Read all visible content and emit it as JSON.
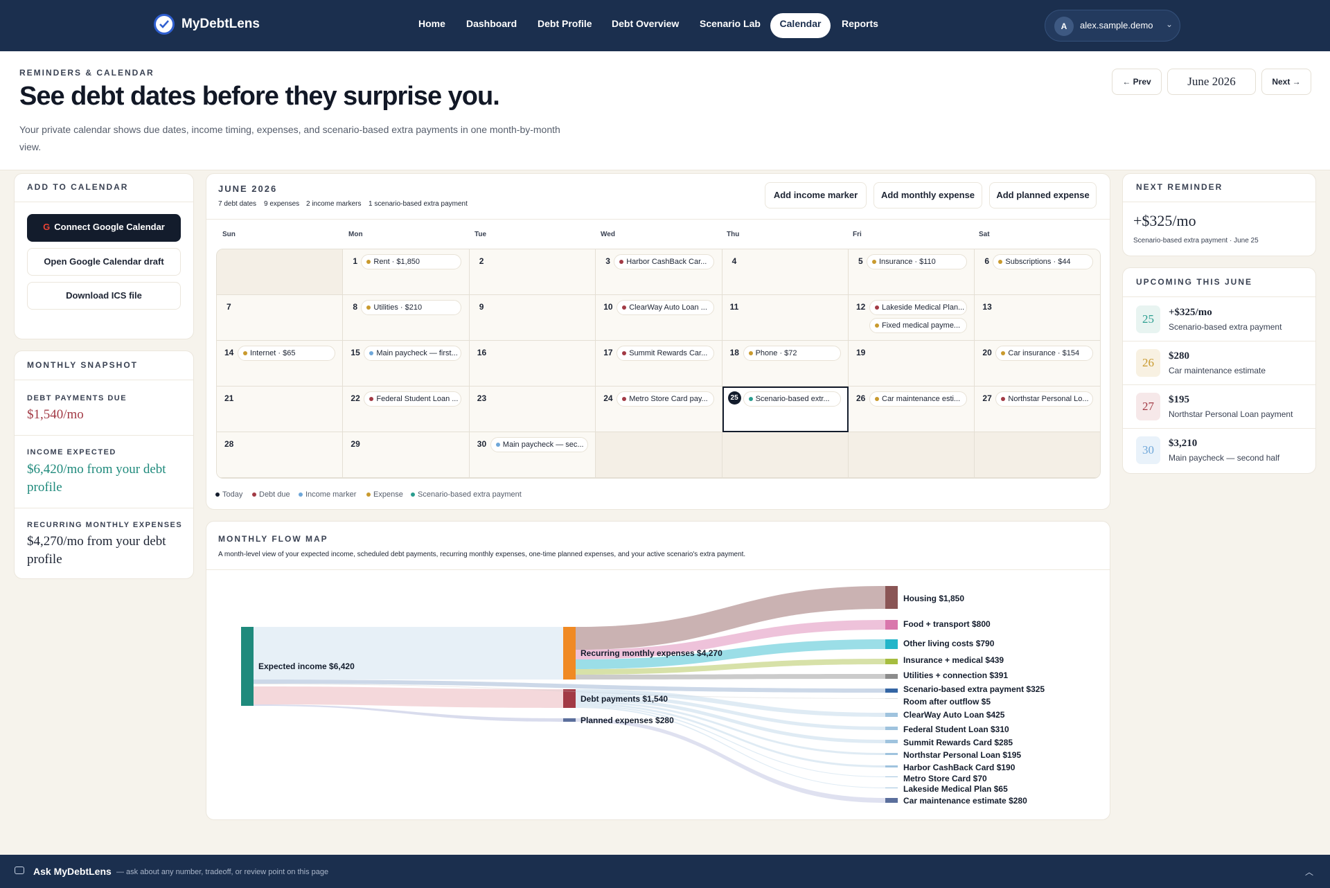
{
  "nav": {
    "brand": "MyDebtLens",
    "links": [
      "Home",
      "Dashboard",
      "Debt Profile",
      "Debt Overview",
      "Scenario Lab",
      "Calendar",
      "Reports"
    ],
    "active": "Calendar",
    "user_initial": "A",
    "user_name": "alex.sample.demo"
  },
  "header": {
    "eyebrow": "REMINDERS & CALENDAR",
    "title": "See debt dates before they surprise you.",
    "subtitle": "Your private calendar shows due dates, income timing, expenses, and scenario-based extra payments in one month-by-month view.",
    "prev_label": "← Prev",
    "month": "June 2026",
    "next_label": "Next →"
  },
  "add_to_calendar": {
    "title": "ADD TO CALENDAR",
    "connect": "Connect Google Calendar",
    "draft": "Open Google Calendar draft",
    "ics": "Download ICS file"
  },
  "snapshot": {
    "title": "MONTHLY SNAPSHOT",
    "debt_label": "DEBT PAYMENTS DUE",
    "debt_value": "$1,540/mo",
    "income_label": "INCOME EXPECTED",
    "income_value": "$6,420/mo from your debt profile",
    "expenses_label": "RECURRING MONTHLY EXPENSES",
    "expenses_value": "$4,270/mo from your debt profile"
  },
  "calendar": {
    "month_title": "JUNE 2026",
    "stats": [
      "7 debt dates",
      "9 expenses",
      "2 income markers",
      "1 scenario-based extra payment"
    ],
    "buttons": [
      "Add income marker",
      "Add monthly expense",
      "Add planned expense"
    ],
    "weekdays": [
      "Sun",
      "Mon",
      "Tue",
      "Wed",
      "Thu",
      "Fri",
      "Sat"
    ],
    "today": 25,
    "colors": {
      "debt": "#a23a45",
      "income": "#6fa7d9",
      "expense": "#c99a2e",
      "scenario": "#2a9d8f",
      "today": "#131c2c"
    },
    "days": [
      {
        "day": 1,
        "events": [
          {
            "label": "Rent · $1,850",
            "kind": "expense"
          }
        ]
      },
      {
        "day": 2,
        "events": []
      },
      {
        "day": 3,
        "events": [
          {
            "label": "Harbor CashBack Car...",
            "kind": "debt"
          }
        ]
      },
      {
        "day": 4,
        "events": []
      },
      {
        "day": 5,
        "events": [
          {
            "label": "Insurance · $110",
            "kind": "expense"
          }
        ]
      },
      {
        "day": 6,
        "events": [
          {
            "label": "Subscriptions · $44",
            "kind": "expense"
          }
        ]
      },
      {
        "day": 7,
        "events": []
      },
      {
        "day": 8,
        "events": [
          {
            "label": "Utilities · $210",
            "kind": "expense"
          }
        ]
      },
      {
        "day": 9,
        "events": []
      },
      {
        "day": 10,
        "events": [
          {
            "label": "ClearWay Auto Loan ...",
            "kind": "debt"
          }
        ]
      },
      {
        "day": 11,
        "events": []
      },
      {
        "day": 12,
        "events": [
          {
            "label": "Lakeside Medical Plan...",
            "kind": "debt"
          },
          {
            "label": "Fixed medical payme...",
            "kind": "expense"
          }
        ]
      },
      {
        "day": 13,
        "events": []
      },
      {
        "day": 14,
        "events": [
          {
            "label": "Internet · $65",
            "kind": "expense"
          }
        ]
      },
      {
        "day": 15,
        "events": [
          {
            "label": "Main paycheck — first...",
            "kind": "income"
          }
        ]
      },
      {
        "day": 16,
        "events": []
      },
      {
        "day": 17,
        "events": [
          {
            "label": "Summit Rewards Car...",
            "kind": "debt"
          }
        ]
      },
      {
        "day": 18,
        "events": [
          {
            "label": "Phone · $72",
            "kind": "expense"
          }
        ]
      },
      {
        "day": 19,
        "events": []
      },
      {
        "day": 20,
        "events": [
          {
            "label": "Car insurance · $154",
            "kind": "expense"
          }
        ]
      },
      {
        "day": 21,
        "events": []
      },
      {
        "day": 22,
        "events": [
          {
            "label": "Federal Student Loan ...",
            "kind": "debt"
          }
        ]
      },
      {
        "day": 23,
        "events": []
      },
      {
        "day": 24,
        "events": [
          {
            "label": "Metro Store Card pay...",
            "kind": "debt"
          }
        ]
      },
      {
        "day": 25,
        "events": [
          {
            "label": "Scenario-based extr...",
            "kind": "scenario"
          }
        ]
      },
      {
        "day": 26,
        "events": [
          {
            "label": "Car maintenance esti...",
            "kind": "expense"
          }
        ]
      },
      {
        "day": 27,
        "events": [
          {
            "label": "Northstar Personal Lo...",
            "kind": "debt"
          }
        ]
      },
      {
        "day": 28,
        "events": []
      },
      {
        "day": 29,
        "events": []
      },
      {
        "day": 30,
        "events": [
          {
            "label": "Main paycheck — sec...",
            "kind": "income"
          }
        ]
      }
    ],
    "legend": [
      {
        "label": "Today",
        "kind": "today"
      },
      {
        "label": "Debt due",
        "kind": "debt"
      },
      {
        "label": "Income marker",
        "kind": "income"
      },
      {
        "label": "Expense",
        "kind": "expense"
      },
      {
        "label": "Scenario-based extra payment",
        "kind": "scenario"
      }
    ]
  },
  "next_reminder": {
    "title": "NEXT REMINDER",
    "amount": "+$325/mo",
    "sub": "Scenario-based extra payment · June 25"
  },
  "upcoming": {
    "title": "UPCOMING THIS JUNE",
    "items": [
      {
        "day": "25",
        "amount": "+$325/mo",
        "desc": "Scenario-based extra payment",
        "color": "#2a9d8f",
        "bg": "#e8f4f1"
      },
      {
        "day": "26",
        "amount": "$280",
        "desc": "Car maintenance estimate",
        "color": "#c99a2e",
        "bg": "#f8f1e2"
      },
      {
        "day": "27",
        "amount": "$195",
        "desc": "Northstar Personal Loan payment",
        "color": "#a23a45",
        "bg": "#f6e8e9"
      },
      {
        "day": "30",
        "amount": "$3,210",
        "desc": "Main paycheck — second half",
        "color": "#6fa7d9",
        "bg": "#e9f2fa"
      }
    ]
  },
  "flow": {
    "title": "MONTHLY FLOW MAP",
    "description": "A month-level view of your expected income, scheduled debt payments, recurring monthly expenses, one-time planned expenses, and your active scenario's extra payment.",
    "source": {
      "label": "Expected income",
      "amount": "$6,420",
      "color": "#1f8a7c"
    },
    "middle": [
      {
        "label": "Recurring monthly expenses",
        "amount": "$4,270",
        "color": "#f08a24"
      },
      {
        "label": "Debt payments",
        "amount": "$1,540",
        "color": "#a23a45"
      },
      {
        "label": "Planned expenses",
        "amount": "$280",
        "color": "#5b6f9c"
      }
    ],
    "targets": [
      {
        "label": "Housing",
        "amount": "$1,850",
        "color": "#8a5555"
      },
      {
        "label": "Food + transport",
        "amount": "$800",
        "color": "#d977ac"
      },
      {
        "label": "Other living costs",
        "amount": "$790",
        "color": "#22b5c9"
      },
      {
        "label": "Insurance + medical",
        "amount": "$439",
        "color": "#a6bd3f"
      },
      {
        "label": "Utilities + connection",
        "amount": "$391",
        "color": "#8c8c8c"
      },
      {
        "label": "Scenario-based extra payment",
        "amount": "$325",
        "color": "#3465a4"
      },
      {
        "label": "Room after outflow",
        "amount": "$5",
        "color": "#dddddd"
      },
      {
        "label": "ClearWay Auto Loan",
        "amount": "$425",
        "color": "#9fc3de"
      },
      {
        "label": "Federal Student Loan",
        "amount": "$310",
        "color": "#9fc3de"
      },
      {
        "label": "Summit Rewards Card",
        "amount": "$285",
        "color": "#9fc3de"
      },
      {
        "label": "Northstar Personal Loan",
        "amount": "$195",
        "color": "#9fc3de"
      },
      {
        "label": "Harbor CashBack Card",
        "amount": "$190",
        "color": "#9fc3de"
      },
      {
        "label": "Metro Store Card",
        "amount": "$70",
        "color": "#9fc3de"
      },
      {
        "label": "Lakeside Medical Plan",
        "amount": "$65",
        "color": "#9fc3de"
      },
      {
        "label": "Car maintenance estimate",
        "amount": "$280",
        "color": "#5b6f9c"
      }
    ]
  },
  "ask": {
    "title": "Ask MyDebtLens",
    "hint": "— ask about any number, tradeoff, or review point on this page"
  }
}
